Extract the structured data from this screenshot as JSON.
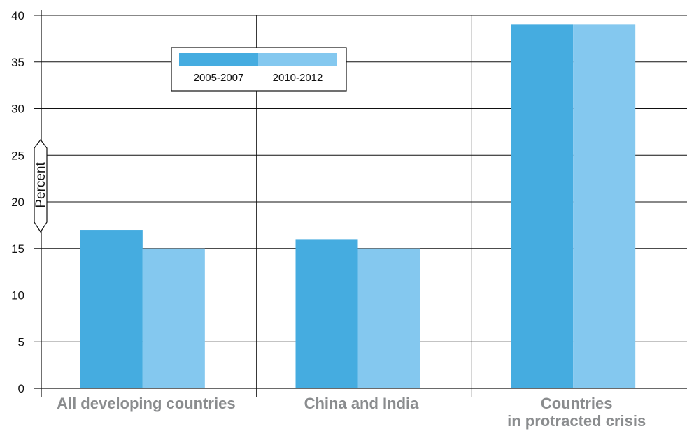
{
  "chart_data": {
    "type": "bar",
    "categories": [
      "All developing countries",
      "China and India",
      "Countries\nin protracted crisis"
    ],
    "series": [
      {
        "name": "2005-2007",
        "values": [
          17,
          16,
          39
        ],
        "color": "#45ace0"
      },
      {
        "name": "2010-2012",
        "values": [
          15,
          15,
          39
        ],
        "color": "#84c8ef"
      }
    ],
    "ylabel": "Percent",
    "xlabel": "",
    "ylim": [
      0,
      40
    ],
    "yticks": [
      0,
      5,
      10,
      15,
      20,
      25,
      30,
      35,
      40
    ],
    "grid": true,
    "legend_position": "top-left",
    "colors": {
      "grid": "#111111",
      "category_label": "#8a8c8e",
      "text": "#111111"
    }
  }
}
